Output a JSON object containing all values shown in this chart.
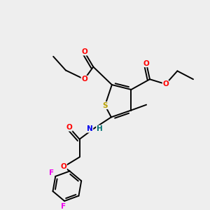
{
  "background_color": "#eeeeee",
  "atom_colors": {
    "S": "#b8a000",
    "O": "#ff0000",
    "N": "#0000ee",
    "H": "#007070",
    "F": "#ee00ee",
    "C": "#000000"
  },
  "bond_color": "#000000",
  "bond_width": 1.4
}
